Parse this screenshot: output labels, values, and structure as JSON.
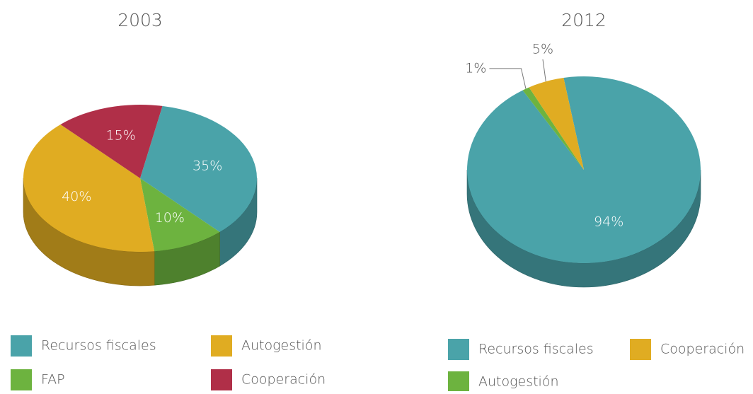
{
  "chart_data": [
    {
      "type": "pie",
      "title": "2003",
      "categories": [
        "Recursos fiscales",
        "FAP",
        "Autogestión",
        "Cooperación"
      ],
      "values": [
        35,
        10,
        40,
        15
      ],
      "value_labels": [
        "35%",
        "10%",
        "40%",
        "15%"
      ],
      "colors": [
        "#4aa3a9",
        "#6db33f",
        "#e0ac22",
        "#b02f48"
      ]
    },
    {
      "type": "pie",
      "title": "2012",
      "categories": [
        "Recursos fiscales",
        "Autogestión",
        "Cooperación"
      ],
      "values": [
        94,
        1,
        5
      ],
      "value_labels": [
        "94%",
        "1%",
        "5%"
      ],
      "colors": [
        "#4aa3a9",
        "#6db33f",
        "#e0ac22"
      ]
    }
  ]
}
